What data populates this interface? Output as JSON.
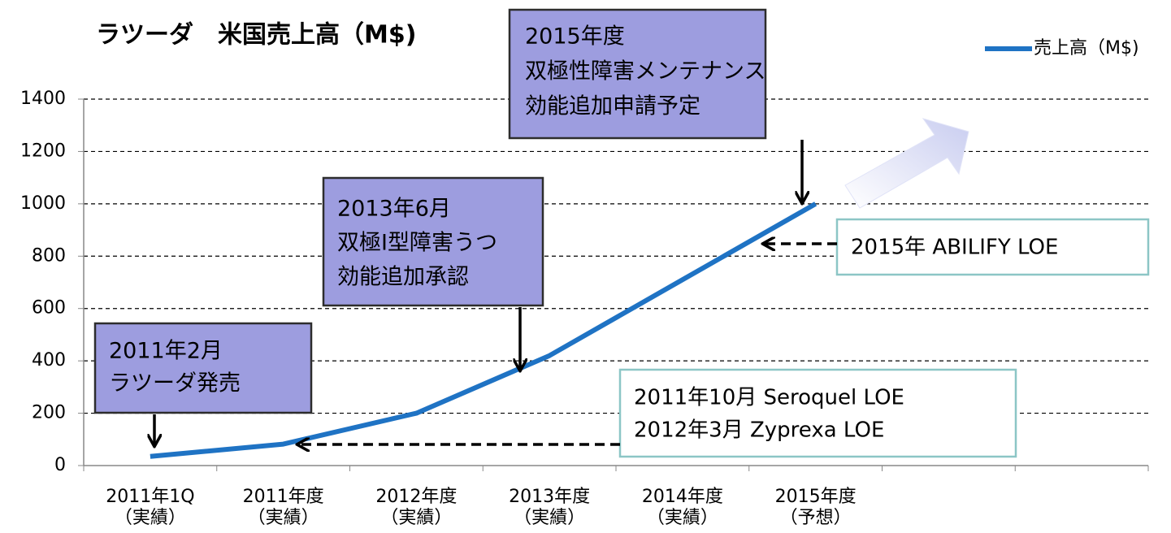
{
  "chart_data": {
    "type": "line",
    "title": "ラツーダ　米国売上高（M$)",
    "categories": [
      [
        "2011年1Q",
        "（実績）"
      ],
      [
        "2011年度",
        "（実績）"
      ],
      [
        "2012年度",
        "（実績）"
      ],
      [
        "2013年度",
        "（実績）"
      ],
      [
        "2014年度",
        "（実績）"
      ],
      [
        "2015年度",
        "（予想）"
      ],
      null,
      null
    ],
    "series": [
      {
        "name": "売上高（M$)",
        "color": "#1f73c4",
        "values": [
          35,
          82,
          200,
          420,
          710,
          1000,
          null,
          null
        ]
      }
    ],
    "ylim": [
      0,
      1400
    ],
    "yticks": [
      0,
      200,
      400,
      600,
      800,
      1000,
      1200,
      1400
    ],
    "grid": true,
    "legend": "top-right",
    "annotations": [
      {
        "lines": [
          "2011年2月",
          "ラツーダ発売"
        ]
      },
      {
        "lines": [
          "2013年6月",
          "双極Ⅰ型障害うつ",
          "効能追加承認"
        ]
      },
      {
        "lines": [
          "2015年度",
          "双極性障害メンテナンス",
          "効能追加申請予定"
        ]
      },
      {
        "lines": [
          "2015年 ABILIFY LOE"
        ]
      },
      {
        "lines": [
          "2011年10月 Seroquel LOE",
          "2012年3月 Zyprexa LOE"
        ]
      }
    ]
  }
}
